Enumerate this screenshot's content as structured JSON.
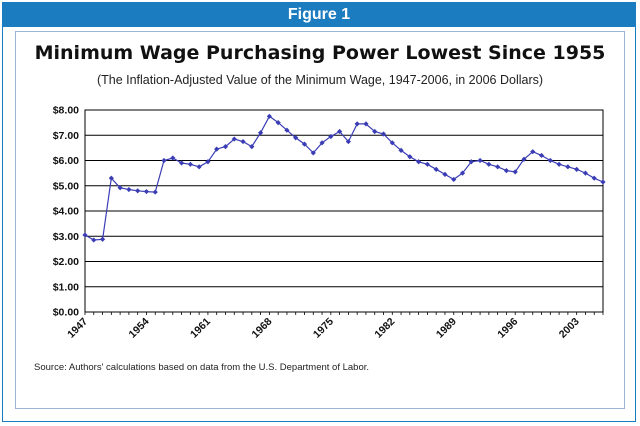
{
  "figure_label": "Figure 1",
  "source_note": "Source: Authors' calculations based on data from the U.S. Department of Labor.",
  "colors": {
    "banner": "#1c7cc0",
    "series": "#3b3db5",
    "grid": "#000000"
  },
  "chart_data": {
    "type": "line",
    "title": "Minimum Wage Purchasing Power Lowest Since 1955",
    "subtitle": "(The Inflation-Adjusted Value of the Minimum Wage, 1947-2006, in 2006 Dollars)",
    "xlabel": "",
    "ylabel": "",
    "ylim": [
      0,
      8
    ],
    "xlim": [
      1947,
      2006
    ],
    "yticks": [
      0,
      1,
      2,
      3,
      4,
      5,
      6,
      7,
      8
    ],
    "ytick_labels": [
      "$0.00",
      "$1.00",
      "$2.00",
      "$3.00",
      "$4.00",
      "$5.00",
      "$6.00",
      "$7.00",
      "$8.00"
    ],
    "xticks": [
      1947,
      1954,
      1961,
      1968,
      1975,
      1982,
      1989,
      1996,
      2003
    ],
    "grid": true,
    "series": [
      {
        "name": "Inflation-adjusted minimum wage",
        "x": [
          1947,
          1948,
          1949,
          1950,
          1951,
          1952,
          1953,
          1954,
          1955,
          1956,
          1957,
          1958,
          1959,
          1960,
          1961,
          1962,
          1963,
          1964,
          1965,
          1966,
          1967,
          1968,
          1969,
          1970,
          1971,
          1972,
          1973,
          1974,
          1975,
          1976,
          1977,
          1978,
          1979,
          1980,
          1981,
          1982,
          1983,
          1984,
          1985,
          1986,
          1987,
          1988,
          1989,
          1990,
          1991,
          1992,
          1993,
          1994,
          1995,
          1996,
          1997,
          1998,
          1999,
          2000,
          2001,
          2002,
          2003,
          2004,
          2005,
          2006
        ],
        "values": [
          3.05,
          2.85,
          2.88,
          5.3,
          4.92,
          4.85,
          4.8,
          4.77,
          4.75,
          6.0,
          6.1,
          5.9,
          5.85,
          5.75,
          5.95,
          6.45,
          6.55,
          6.85,
          6.75,
          6.55,
          7.1,
          7.75,
          7.5,
          7.2,
          6.9,
          6.65,
          6.3,
          6.7,
          6.95,
          7.15,
          6.75,
          7.45,
          7.45,
          7.15,
          7.05,
          6.7,
          6.4,
          6.15,
          5.95,
          5.85,
          5.65,
          5.45,
          5.25,
          5.5,
          5.95,
          6.0,
          5.85,
          5.75,
          5.6,
          5.55,
          6.05,
          6.35,
          6.2,
          6.0,
          5.85,
          5.75,
          5.65,
          5.5,
          5.3,
          5.15
        ]
      }
    ]
  }
}
